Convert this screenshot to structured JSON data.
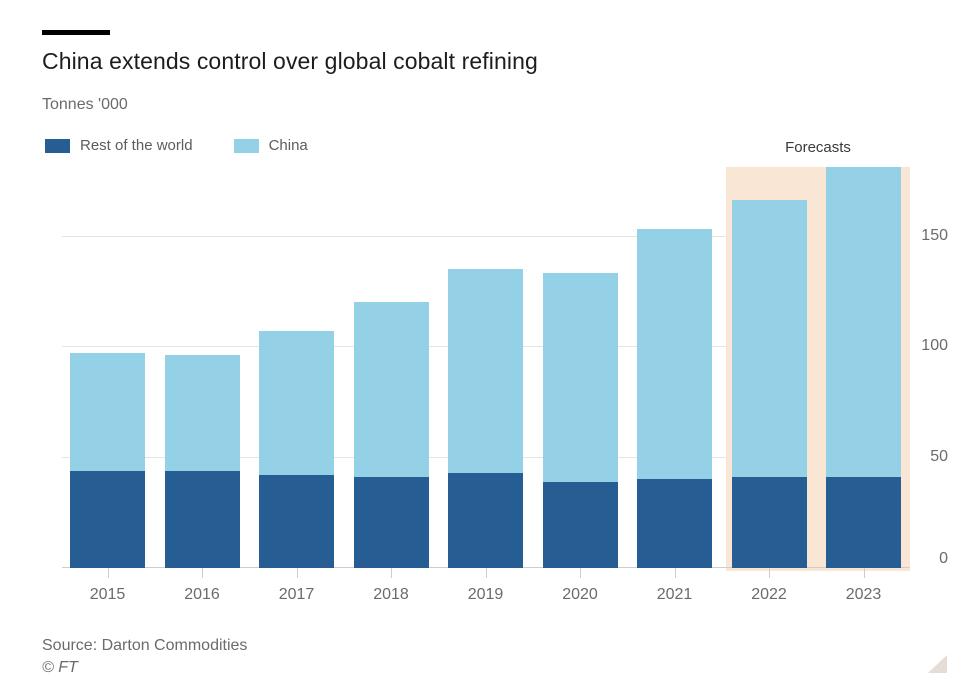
{
  "header": {
    "title": "China extends control over global cobalt refining",
    "subtitle": "Tonnes '000"
  },
  "legend": {
    "items": [
      {
        "label": "Rest of the world",
        "color": "#265d92"
      },
      {
        "label": "China",
        "color": "#95d1e6"
      }
    ]
  },
  "chart_data": {
    "type": "bar",
    "stacked": true,
    "title": "China extends control over global cobalt refining",
    "ylabel": "Tonnes '000",
    "categories": [
      "2015",
      "2016",
      "2017",
      "2018",
      "2019",
      "2020",
      "2021",
      "2022",
      "2023"
    ],
    "series": [
      {
        "name": "Rest of the world",
        "color": "#265d92",
        "values": [
          44,
          44,
          42,
          41,
          43,
          39,
          40,
          41,
          41
        ]
      },
      {
        "name": "China",
        "color": "#95d1e6",
        "values": [
          53,
          52,
          65,
          79,
          92,
          94,
          113,
          125,
          140
        ]
      }
    ],
    "totals": [
      97,
      96,
      107,
      120,
      135,
      133,
      153,
      166,
      181
    ],
    "yticks": [
      0,
      50,
      100,
      150
    ],
    "ylim": [
      0,
      181
    ],
    "grid": "horizontal",
    "ytick_side": "right",
    "legend_position": "top-left",
    "forecast": {
      "label": "Forecasts",
      "categories": [
        "2022",
        "2023"
      ],
      "band_color": "#fae6d5"
    }
  },
  "footer": {
    "source": "Source: Darton Commodities",
    "copyright": "© FT"
  },
  "colors": {
    "background": "#ffffff",
    "title_text": "#1d1d1b",
    "muted_text": "#6e6a68",
    "gridline": "#e4e4e4",
    "axis_line": "#cfccc9",
    "resize_grip": "#e5ddd5"
  }
}
